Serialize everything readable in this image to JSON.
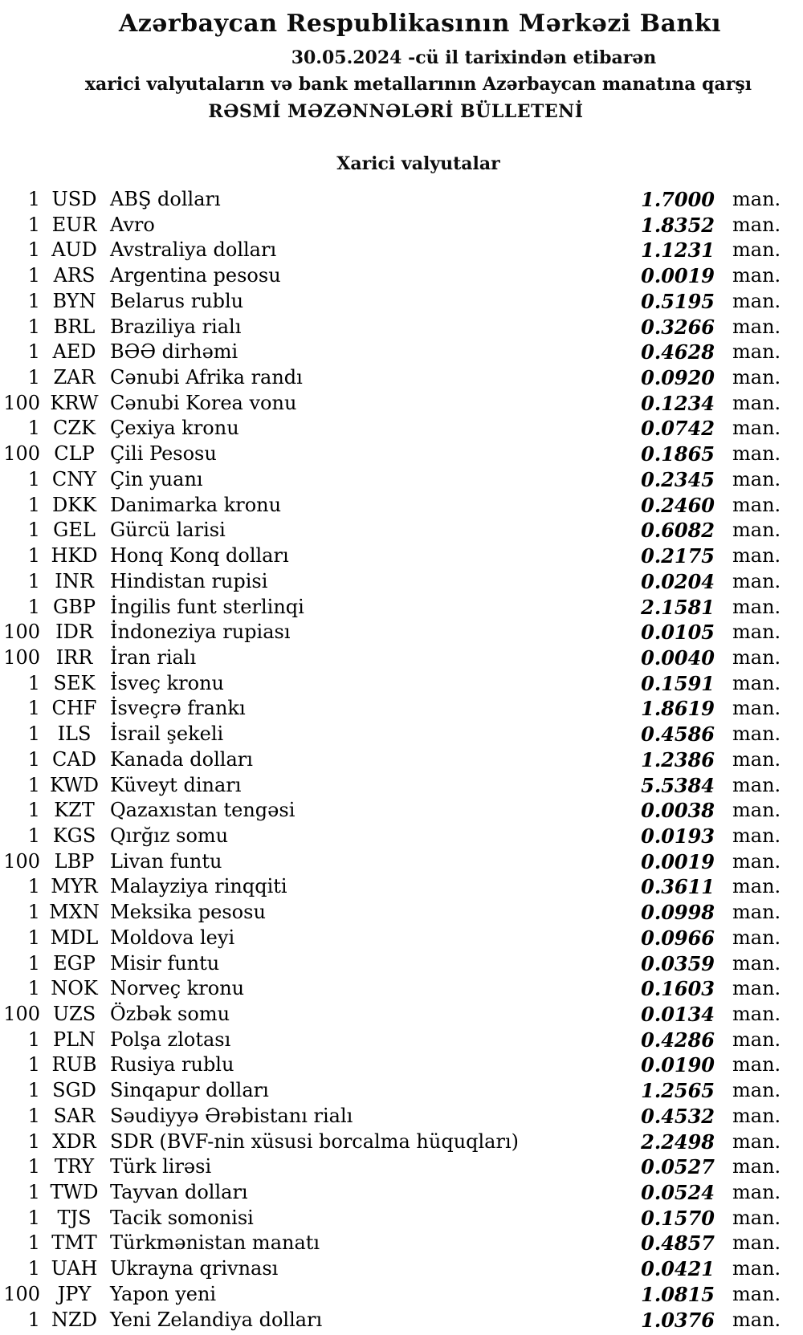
{
  "header": {
    "title": "Azərbaycan Respublikasının Mərkəzi Bankı",
    "date_line": "30.05.2024 -cü il tarixindən etibarən",
    "subtitle": "xarici valyutaların və bank metallarının Azərbaycan manatına qarşı",
    "bulletin_line": "RƏSMİ MƏZƏNNƏLƏRİ BÜLLETENİ"
  },
  "section": {
    "title": "Xarici valyutalar"
  },
  "table": {
    "unit_label": "man.",
    "rows": [
      {
        "qty": "1",
        "code": "USD",
        "name": "ABŞ dolları",
        "rate": "1.7000"
      },
      {
        "qty": "1",
        "code": "EUR",
        "name": "Avro",
        "rate": "1.8352"
      },
      {
        "qty": "1",
        "code": "AUD",
        "name": "Avstraliya dolları",
        "rate": "1.1231"
      },
      {
        "qty": "1",
        "code": "ARS",
        "name": "Argentina pesosu",
        "rate": "0.0019"
      },
      {
        "qty": "1",
        "code": "BYN",
        "name": "Belarus rublu",
        "rate": "0.5195"
      },
      {
        "qty": "1",
        "code": "BRL",
        "name": "Braziliya rialı",
        "rate": "0.3266"
      },
      {
        "qty": "1",
        "code": "AED",
        "name": "BƏƏ dirhəmi",
        "rate": "0.4628"
      },
      {
        "qty": "1",
        "code": "ZAR",
        "name": "Cənubi Afrika randı",
        "rate": "0.0920"
      },
      {
        "qty": "100",
        "code": "KRW",
        "name": "Cənubi Korea vonu",
        "rate": "0.1234"
      },
      {
        "qty": "1",
        "code": "CZK",
        "name": "Çexiya kronu",
        "rate": "0.0742"
      },
      {
        "qty": "100",
        "code": "CLP",
        "name": "Çili Pesosu",
        "rate": "0.1865"
      },
      {
        "qty": "1",
        "code": "CNY",
        "name": "Çin yuanı",
        "rate": "0.2345"
      },
      {
        "qty": "1",
        "code": "DKK",
        "name": "Danimarka kronu",
        "rate": "0.2460"
      },
      {
        "qty": "1",
        "code": "GEL",
        "name": "Gürcü larisi",
        "rate": "0.6082"
      },
      {
        "qty": "1",
        "code": "HKD",
        "name": "Honq Konq dolları",
        "rate": "0.2175"
      },
      {
        "qty": "1",
        "code": "INR",
        "name": "Hindistan rupisi",
        "rate": "0.0204"
      },
      {
        "qty": "1",
        "code": "GBP",
        "name": "İngilis funt sterlinqi",
        "rate": "2.1581"
      },
      {
        "qty": "100",
        "code": "IDR",
        "name": "İndoneziya rupiası",
        "rate": "0.0105"
      },
      {
        "qty": "100",
        "code": "IRR",
        "name": "İran rialı",
        "rate": "0.0040"
      },
      {
        "qty": "1",
        "code": "SEK",
        "name": "İsveç kronu",
        "rate": "0.1591"
      },
      {
        "qty": "1",
        "code": "CHF",
        "name": "İsveçrə frankı",
        "rate": "1.8619"
      },
      {
        "qty": "1",
        "code": "ILS",
        "name": "İsrail şekeli",
        "rate": "0.4586"
      },
      {
        "qty": "1",
        "code": "CAD",
        "name": "Kanada dolları",
        "rate": "1.2386"
      },
      {
        "qty": "1",
        "code": "KWD",
        "name": "Küveyt dinarı",
        "rate": "5.5384"
      },
      {
        "qty": "1",
        "code": "KZT",
        "name": "Qazaxıstan tengəsi",
        "rate": "0.0038"
      },
      {
        "qty": "1",
        "code": "KGS",
        "name": "Qırğız somu",
        "rate": "0.0193"
      },
      {
        "qty": "100",
        "code": "LBP",
        "name": "Livan funtu",
        "rate": "0.0019"
      },
      {
        "qty": "1",
        "code": "MYR",
        "name": "Malayziya rinqqiti",
        "rate": "0.3611"
      },
      {
        "qty": "1",
        "code": "MXN",
        "name": "Meksika pesosu",
        "rate": "0.0998"
      },
      {
        "qty": "1",
        "code": "MDL",
        "name": "Moldova leyi",
        "rate": "0.0966"
      },
      {
        "qty": "1",
        "code": "EGP",
        "name": "Misir funtu",
        "rate": "0.0359"
      },
      {
        "qty": "1",
        "code": "NOK",
        "name": "Norveç kronu",
        "rate": "0.1603"
      },
      {
        "qty": "100",
        "code": "UZS",
        "name": "Özbək somu",
        "rate": "0.0134"
      },
      {
        "qty": "1",
        "code": "PLN",
        "name": "Polşa zlotası",
        "rate": "0.4286"
      },
      {
        "qty": "1",
        "code": "RUB",
        "name": "Rusiya rublu",
        "rate": "0.0190"
      },
      {
        "qty": "1",
        "code": "SGD",
        "name": "Sinqapur dolları",
        "rate": "1.2565"
      },
      {
        "qty": "1",
        "code": "SAR",
        "name": "Səudiyyə Ərəbistanı rialı",
        "rate": "0.4532"
      },
      {
        "qty": "1",
        "code": "XDR",
        "name": "SDR (BVF-nin xüsusi borcalma hüquqları)",
        "rate": "2.2498"
      },
      {
        "qty": "1",
        "code": "TRY",
        "name": "Türk lirəsi",
        "rate": "0.0527"
      },
      {
        "qty": "1",
        "code": "TWD",
        "name": "Tayvan dolları",
        "rate": "0.0524"
      },
      {
        "qty": "1",
        "code": "TJS",
        "name": "Tacik somonisi",
        "rate": "0.1570"
      },
      {
        "qty": "1",
        "code": "TMT",
        "name": "Türkmənistan manatı",
        "rate": "0.4857"
      },
      {
        "qty": "1",
        "code": "UAH",
        "name": "Ukrayna qrivnası",
        "rate": "0.0421"
      },
      {
        "qty": "100",
        "code": "JPY",
        "name": "Yapon yeni",
        "rate": "1.0815"
      },
      {
        "qty": "1",
        "code": "NZD",
        "name": "Yeni Zelandiya dolları",
        "rate": "1.0376"
      }
    ]
  }
}
